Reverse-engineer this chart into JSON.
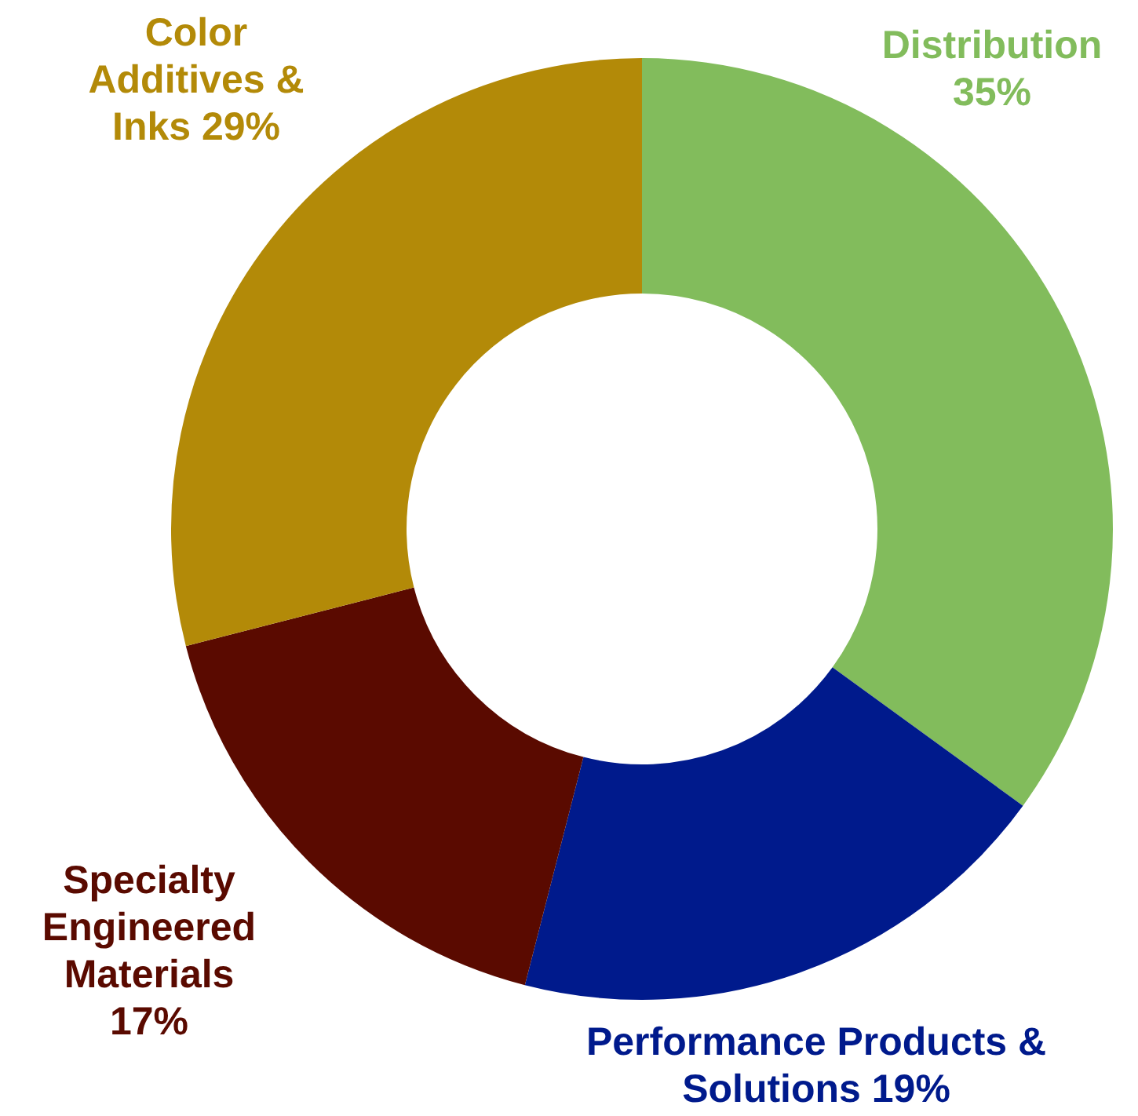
{
  "chart_data": {
    "type": "donut",
    "categories": [
      "Distribution",
      "Performance Products & Solutions",
      "Specialty Engineered Materials",
      "Color Additives & Inks"
    ],
    "values": [
      35,
      19,
      17,
      29
    ],
    "value_labels": [
      "35%",
      "19%",
      "17%",
      "29%"
    ],
    "colors": [
      "#82bc5c",
      "#001a8c",
      "#5a0a00",
      "#b38a08"
    ],
    "legend": false
  }
}
